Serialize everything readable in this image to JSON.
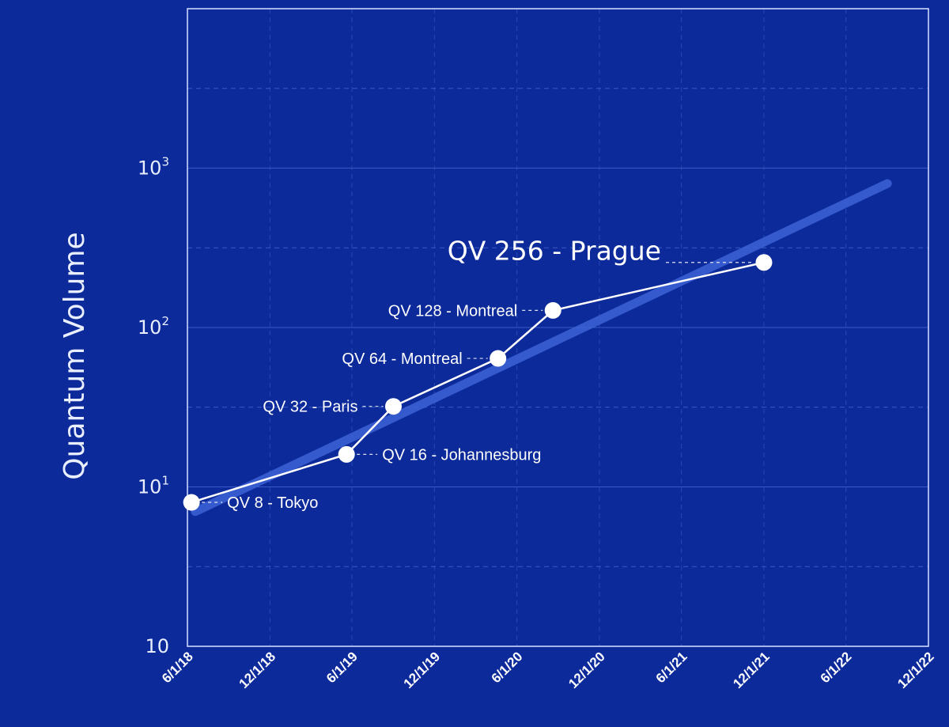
{
  "chart_data": {
    "type": "line",
    "title": "",
    "xlabel": "",
    "ylabel": "Quantum Volume",
    "y_scale": "log",
    "ylim": [
      1,
      10000
    ],
    "xlim": [
      "2018-06-01",
      "2022-12-01"
    ],
    "x_ticks": [
      "6/1/18",
      "12/1/18",
      "6/1/19",
      "12/1/19",
      "6/1/20",
      "12/1/20",
      "6/1/21",
      "12/1/21",
      "6/1/22",
      "12/1/22"
    ],
    "y_ticks": [
      {
        "value": 1,
        "base": "10",
        "exp": ""
      },
      {
        "value": 10,
        "base": "10",
        "exp": "1"
      },
      {
        "value": 100,
        "base": "10",
        "exp": "2"
      },
      {
        "value": 1000,
        "base": "10",
        "exp": "3"
      }
    ],
    "grid": true,
    "colors": {
      "background": "#0c2a9a",
      "grid": "#3a5bc4",
      "trend": "#3d63d6",
      "series": "#ffffff"
    },
    "series": [
      {
        "points": [
          {
            "x": "2018-06-10",
            "y": 8,
            "label": "QV 8 - Tokyo",
            "label_side": "right"
          },
          {
            "x": "2019-05-20",
            "y": 16,
            "label": "QV 16 - Johannesburg",
            "label_side": "right"
          },
          {
            "x": "2019-09-01",
            "y": 32,
            "label": "QV 32 - Paris",
            "label_side": "left"
          },
          {
            "x": "2020-04-20",
            "y": 64,
            "label": "QV 64 - Montreal",
            "label_side": "left"
          },
          {
            "x": "2020-08-20",
            "y": 128,
            "label": "QV 128 - Montreal",
            "label_side": "left"
          },
          {
            "x": "2021-12-01",
            "y": 256,
            "label": "QV 256 - Prague",
            "label_side": "left",
            "emphasis": true
          }
        ]
      }
    ],
    "trend": {
      "x": [
        "2018-06-01",
        "2022-09-01"
      ],
      "y": [
        7,
        800
      ]
    }
  }
}
